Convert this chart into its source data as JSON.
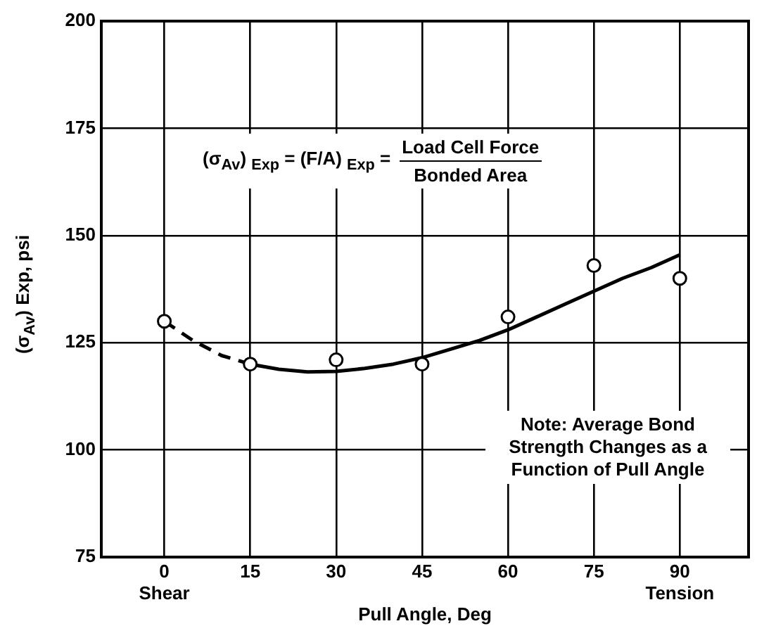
{
  "chart_data": {
    "type": "line",
    "xlabel": "Pull Angle, Deg",
    "ylabel": "(σ$_{Av}$) Exp, psi",
    "annotations": [
      "(σ$_{Av}$) $_{Exp}$ = (F/A) $_{Exp}$ =",
      "Load Cell Force",
      "Bonded Area",
      "Note: Average Bond Strength Changes as a Function of Pull Angle"
    ],
    "xlim": [
      -11,
      102
    ],
    "xticks": [
      {
        "value": 0,
        "label": "0\nShear"
      },
      15,
      30,
      45,
      60,
      75,
      {
        "value": 90,
        "label": "90\nTension"
      }
    ],
    "ylim": [
      75,
      200
    ],
    "yticks": [
      75,
      100,
      125,
      150,
      175,
      200
    ],
    "grid": true,
    "series": [
      {
        "type": "scatter",
        "marker": "circle",
        "color": "#000000",
        "x": [
          0,
          15,
          30,
          45,
          60,
          75,
          90
        ],
        "values": [
          130,
          120,
          121,
          120,
          131,
          143,
          140
        ]
      },
      {
        "marker": "none",
        "line_style": "dashed",
        "color": "#000000",
        "x": [
          0,
          5,
          10,
          15
        ],
        "values": [
          130,
          125.5,
          122,
          120
        ]
      },
      {
        "marker": "none",
        "line_style": "solid",
        "color": "#000000",
        "x": [
          15,
          20,
          25,
          30,
          35,
          40,
          45,
          50,
          55,
          60,
          65,
          70,
          75,
          80,
          85,
          90
        ],
        "values": [
          120,
          118.8,
          118.2,
          118.3,
          119,
          120,
          121.5,
          123.5,
          125.5,
          128,
          131,
          134,
          137,
          140,
          142.5,
          145.5
        ]
      }
    ]
  }
}
